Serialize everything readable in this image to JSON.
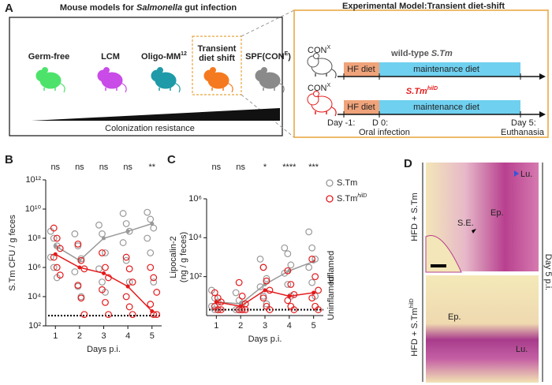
{
  "panel_a": {
    "label": "A",
    "left_title": {
      "prefix": "Mouse models for ",
      "italic": "Salmonella",
      "suffix": " gut infection"
    },
    "models": [
      {
        "name": "Germ-free",
        "color": "#4de36b"
      },
      {
        "name": "LCM",
        "color": "#c94be8"
      },
      {
        "name": "Oligo-MM",
        "superscript": "12",
        "color": "#1f9aa8"
      },
      {
        "name_lines": [
          "Transient",
          "diet shift"
        ],
        "color": "#f57a1f"
      },
      {
        "name": "SPF(CON",
        "superscript": "E",
        "suffix": ")",
        "color": "#8a8a8a"
      }
    ],
    "gradient_label": "Colonization resistance",
    "right_title": "Experimental Model:Transient diet-shift",
    "groups": [
      {
        "mouse": "CON",
        "mouse_sup": "X",
        "infection_prefix": "wild-type ",
        "infection": "S.Tm",
        "color": "#555555"
      },
      {
        "mouse": "CON",
        "mouse_sup": "X",
        "infection": "S.Tm",
        "infection_sup": "hilD",
        "color": "#e41a1c"
      }
    ],
    "hf_diet": "HF diet",
    "maintenance_diet": "maintenance diet",
    "day_start": "Day -1:",
    "day_zero": "D 0:",
    "day_zero_event": "Oral infection",
    "day_end": "Day 5:",
    "day_end_event": "Euthanasia"
  },
  "chart_data": [
    {
      "type": "scatter",
      "panel_label": "B",
      "ylabel": [
        "S.Tm CFU / g feces"
      ],
      "xlabel": "Days p.i.",
      "log_y": true,
      "ylim": [
        100,
        1000000000000
      ],
      "yticks": [
        {
          "value": 100,
          "label": "10²"
        },
        {
          "value": 10000,
          "label": "10⁴"
        },
        {
          "value": 1000000,
          "label": "10⁶"
        },
        {
          "value": 100000000,
          "label": "10⁸"
        },
        {
          "value": 10000000000,
          "label": "10¹⁰"
        },
        {
          "value": 1000000000000,
          "label": "10¹²"
        }
      ],
      "xlim": [
        0.6,
        5.4
      ],
      "xticks": [
        1,
        2,
        3,
        4,
        5
      ],
      "x": [
        1,
        2,
        3,
        4,
        5
      ],
      "annotations": [
        "ns",
        "ns",
        "ns",
        "ns",
        "**"
      ],
      "threshold": 500,
      "series": [
        {
          "name": "S.Tm",
          "color": "#999999",
          "values": [
            30000000,
            3000000,
            100000000,
            300000000,
            1000000000
          ],
          "points": [
            [
              300000000,
              100000000,
              30000000,
              5000000,
              1000000,
              200000
            ],
            [
              200000000,
              30000000,
              4000000,
              500000,
              50000,
              10000
            ],
            [
              800000000,
              200000000,
              10000000,
              800000,
              100000,
              20000
            ],
            [
              5000000000,
              1000000000,
              300000000,
              50000000,
              3000000,
              100000
            ],
            [
              6000000000,
              2000000000,
              500000000,
              100000000,
              10000000,
              100000
            ]
          ]
        },
        {
          "name": "S.Tm",
          "name_superscript": "hilD",
          "color": "#e41a1c",
          "values": [
            8000000,
            1000000,
            400000,
            50000,
            1000
          ],
          "points": [
            [
              500000000,
              100000000,
              20000000,
              5000000,
              1000000,
              300000
            ],
            [
              40000000,
              3000000,
              800000,
              60000,
              8000,
              600
            ],
            [
              10000000,
              1000000,
              200000,
              30000,
              4000,
              600
            ],
            [
              5000000,
              800000,
              100000,
              10000,
              2000,
              600
            ],
            [
              1000000,
              200000,
              20000,
              3000,
              600,
              600
            ]
          ]
        }
      ]
    },
    {
      "type": "scatter",
      "panel_label": "C",
      "ylabel": [
        "Lipocalin-2",
        "(ng / g feces)"
      ],
      "xlabel": "Days p.i.",
      "log_y": true,
      "ylim": [
        1,
        1000000
      ],
      "yticks": [
        {
          "value": 100,
          "label": "10²"
        },
        {
          "value": 10000,
          "label": "10⁴"
        },
        {
          "value": 1000000,
          "label": "10⁶"
        }
      ],
      "xlim": [
        0.6,
        5.4
      ],
      "xticks": [
        1,
        2,
        3,
        4,
        5
      ],
      "x": [
        1,
        2,
        3,
        4,
        5
      ],
      "annotations": [
        "ns",
        "ns",
        "*",
        "****",
        "***"
      ],
      "threshold": 2,
      "zones": [
        "Inflamed",
        "Uninflamed"
      ],
      "legend": true,
      "series": [
        {
          "name": "S.Tm",
          "color": "#999999",
          "values": [
            5,
            4,
            40,
            200,
            600
          ],
          "points": [
            [
              20,
              8,
              5,
              3,
              2,
              2
            ],
            [
              15,
              6,
              4,
              2,
              2,
              2
            ],
            [
              800,
              300,
              80,
              30,
              10,
              4
            ],
            [
              3000,
              1500,
              400,
              150,
              40,
              10
            ],
            [
              20000,
              3000,
              800,
              300,
              50,
              10
            ]
          ]
        },
        {
          "name": "S.Tm",
          "name_superscript": "hilD",
          "color": "#e41a1c",
          "values": [
            5,
            3,
            20,
            10,
            15
          ],
          "points": [
            [
              15,
              8,
              5,
              3,
              2,
              2
            ],
            [
              50,
              10,
              4,
              2,
              2,
              2
            ],
            [
              300,
              60,
              20,
              8,
              3,
              2
            ],
            [
              200,
              40,
              12,
              6,
              3,
              2
            ],
            [
              800,
              100,
              20,
              8,
              3,
              2
            ]
          ]
        }
      ]
    }
  ],
  "panel_d": {
    "label": "D",
    "top_label": "HFD + S.Tm",
    "bottom_label": "HFD + S.Tm",
    "bottom_label_sup": "hilD",
    "top_lumen": "Lu.",
    "top_epithelium": "Ep.",
    "top_se": "S.E.",
    "bottom_epithelium": "Ep.",
    "bottom_lumen": "Lu.",
    "side_label": "Day 5 p.i."
  }
}
